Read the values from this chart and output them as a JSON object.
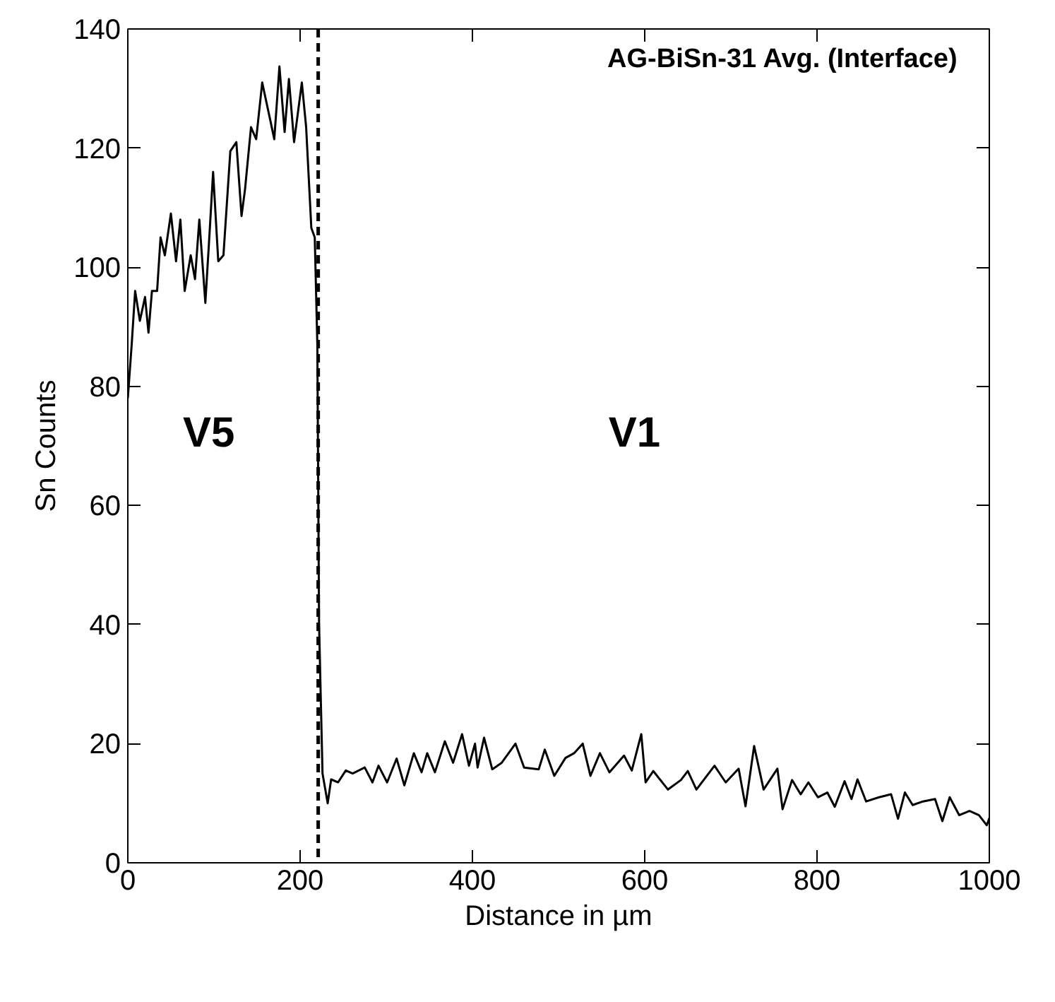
{
  "chart_data": {
    "type": "line",
    "title": "AG-BiSn-31 Avg. (Interface)",
    "xlabel": "Distance in µm",
    "ylabel": "Sn Counts",
    "xlim": [
      0,
      1000
    ],
    "ylim": [
      0,
      140
    ],
    "xticks": [
      0,
      200,
      400,
      600,
      800,
      1000
    ],
    "yticks": [
      0,
      20,
      40,
      60,
      80,
      100,
      120,
      140
    ],
    "grid": false,
    "marker": "none",
    "line_style": "solid",
    "x": [
      0,
      4.5,
      8.5,
      14,
      20,
      24,
      28,
      34,
      38,
      43,
      50,
      56,
      61,
      66,
      73,
      78,
      83,
      90,
      95,
      99,
      105,
      111,
      119,
      126,
      132,
      136,
      143,
      149,
      156,
      164,
      170,
      176,
      182,
      187,
      193,
      202,
      207,
      213,
      217,
      220,
      222,
      226,
      232,
      236,
      244,
      253,
      261,
      275,
      284,
      291,
      301,
      312,
      321,
      332,
      341,
      347.5,
      356.5,
      368,
      377.6,
      388,
      396,
      403,
      406,
      413.5,
      423,
      434,
      450,
      460,
      477,
      484,
      495,
      508,
      518,
      528,
      537,
      548,
      559,
      576,
      585,
      596,
      601,
      610,
      627,
      642,
      650,
      660,
      681,
      694,
      709,
      717,
      727,
      738,
      754,
      760,
      771,
      781,
      790,
      801,
      812,
      820.6,
      832,
      840,
      847,
      857,
      872,
      886,
      894,
      902,
      911,
      923,
      937,
      945.5,
      954,
      965,
      977,
      988,
      997,
      1000
    ],
    "series": [
      {
        "color": "#000000",
        "values": [
          78,
          87,
          96,
          91,
          95,
          89,
          96,
          96,
          105,
          102,
          109,
          101,
          108,
          96,
          102,
          98,
          108,
          94,
          106,
          116,
          101,
          102,
          119.5,
          121,
          108.6,
          113,
          123.5,
          121.5,
          131,
          125.6,
          121.5,
          133.7,
          122.7,
          131.6,
          121,
          131,
          123.5,
          106.6,
          105,
          87,
          40,
          15,
          10,
          14,
          13.5,
          15.5,
          15,
          16,
          13.5,
          16.3,
          13.5,
          17.5,
          13,
          18.4,
          15.2,
          18.4,
          15.2,
          20.4,
          16.8,
          21.6,
          16.3,
          20,
          16,
          21,
          15.7,
          16.8,
          20,
          16,
          15.7,
          19,
          14.6,
          17.6,
          18.4,
          20,
          14.6,
          18.4,
          15.2,
          18,
          15.5,
          21.6,
          13.5,
          15.4,
          12.3,
          13.9,
          15.4,
          12.3,
          16.3,
          13.5,
          15.8,
          9.5,
          19.6,
          12.3,
          15.8,
          9,
          13.9,
          11.5,
          13.5,
          11,
          11.8,
          9.4,
          13.7,
          10.7,
          14,
          10.3,
          11,
          11.5,
          7.4,
          11.8,
          9.7,
          10.3,
          10.7,
          7,
          11,
          8,
          8.7,
          8,
          6.3,
          7.5
        ]
      }
    ],
    "ref_lines": [
      {
        "axis": "x",
        "value": 221,
        "line_style": "dashed",
        "color": "#000000"
      }
    ],
    "annotations": [
      "V5",
      "V1"
    ]
  }
}
